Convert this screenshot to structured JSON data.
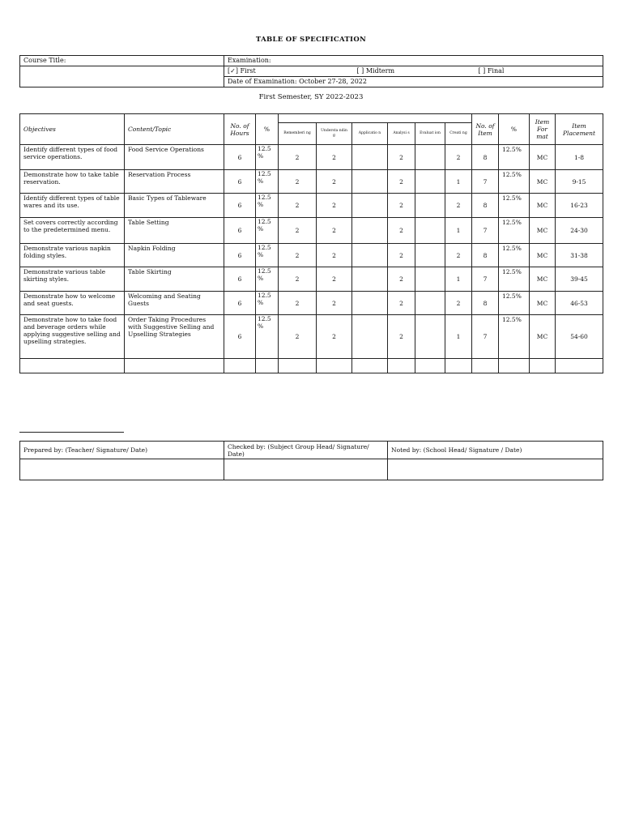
{
  "title": "TABLE OF SPECIFICATION",
  "info": {
    "course_title": "Course Title:",
    "examination": "Examination:",
    "first": "[✓] First",
    "midterm": "[ ] Midterm",
    "final": "[ ] Final",
    "date": "Date of Examination: October 27-28, 2022"
  },
  "semester": "First Semester, SY 2022-2023",
  "headers": {
    "objectives": "Objectives",
    "content": "Content/Topic",
    "hours": "No. of Hours",
    "pct": "%",
    "levels": [
      "Rememberi ng",
      "Understa nding",
      "Applicatio n",
      "Analysi s",
      "Evaluat ion",
      "Creati ng"
    ],
    "items": "No. of Item",
    "pct2": "%",
    "format": "Item For mat",
    "placement": "Item Placement"
  },
  "rows": [
    {
      "objective": "Identify different types of food service operations.",
      "content": "Food Service Operations",
      "hours": "6",
      "pct": "12.5 %",
      "rem": "2",
      "und": "2",
      "app": "",
      "ana": "2",
      "eva": "",
      "cre": "2",
      "items": "8",
      "pct2": "12.5%",
      "format": "MC",
      "placement": "1-8"
    },
    {
      "objective": "Demonstrate how to take table reservation.",
      "content": "Reservation Process",
      "hours": "6",
      "pct": "12.5 %",
      "rem": "2",
      "und": "2",
      "app": "",
      "ana": "2",
      "eva": "",
      "cre": "1",
      "items": "7",
      "pct2": "12.5%",
      "format": "MC",
      "placement": "9-15"
    },
    {
      "objective": "Identify different types of table wares and its use.",
      "content": "Basic Types of Tableware",
      "hours": "6",
      "pct": "12.5 %",
      "rem": "2",
      "und": "2",
      "app": "",
      "ana": "2",
      "eva": "",
      "cre": "2",
      "items": "8",
      "pct2": "12.5%",
      "format": "MC",
      "placement": "16-23"
    },
    {
      "objective": "Set covers correctly according to the predetermined menu.",
      "content": "Table Setting",
      "hours": "6",
      "pct": "12.5 %",
      "rem": "2",
      "und": "2",
      "app": "",
      "ana": "2",
      "eva": "",
      "cre": "1",
      "items": "7",
      "pct2": "12.5%",
      "format": "MC",
      "placement": "24-30"
    },
    {
      "objective": "Demonstrate various napkin folding styles.",
      "content": "Napkin Folding",
      "hours": "6",
      "pct": "12.5 %",
      "rem": "2",
      "und": "2",
      "app": "",
      "ana": "2",
      "eva": "",
      "cre": "2",
      "items": "8",
      "pct2": "12.5%",
      "format": "MC",
      "placement": "31-38"
    },
    {
      "objective": "Demonstrate various table skirting styles.",
      "content": "Table Skirting",
      "hours": "6",
      "pct": "12.5 %",
      "rem": "2",
      "und": "2",
      "app": "",
      "ana": "2",
      "eva": "",
      "cre": "1",
      "items": "7",
      "pct2": "12.5%",
      "format": "MC",
      "placement": "39-45"
    },
    {
      "objective": "Demonstrate how to welcome and seat guests.",
      "content": "Welcoming and Seating Guests",
      "hours": "6",
      "pct": "12.5 %",
      "rem": "2",
      "und": "2",
      "app": "",
      "ana": "2",
      "eva": "",
      "cre": "2",
      "items": "8",
      "pct2": "12.5%",
      "format": "MC",
      "placement": "46-53"
    },
    {
      "objective": "Demonstrate how to take food and beverage orders while applying suggestive selling and upselling strategies.",
      "content": "Order Taking Procedures with Suggestive Selling and Upselling Strategies",
      "hours": "6",
      "pct": "12.5 %",
      "rem": "2",
      "und": "2",
      "app": "",
      "ana": "2",
      "eva": "",
      "cre": "1",
      "items": "7",
      "pct2": "12.5%",
      "format": "MC",
      "placement": "54-60"
    }
  ],
  "signatures": {
    "prepared": "Prepared by: (Teacher/ Signature/ Date)",
    "checked": "Checked by: (Subject Group Head/ Signature/ Date)",
    "noted": "Noted by: (School Head/ Signature / Date)"
  }
}
